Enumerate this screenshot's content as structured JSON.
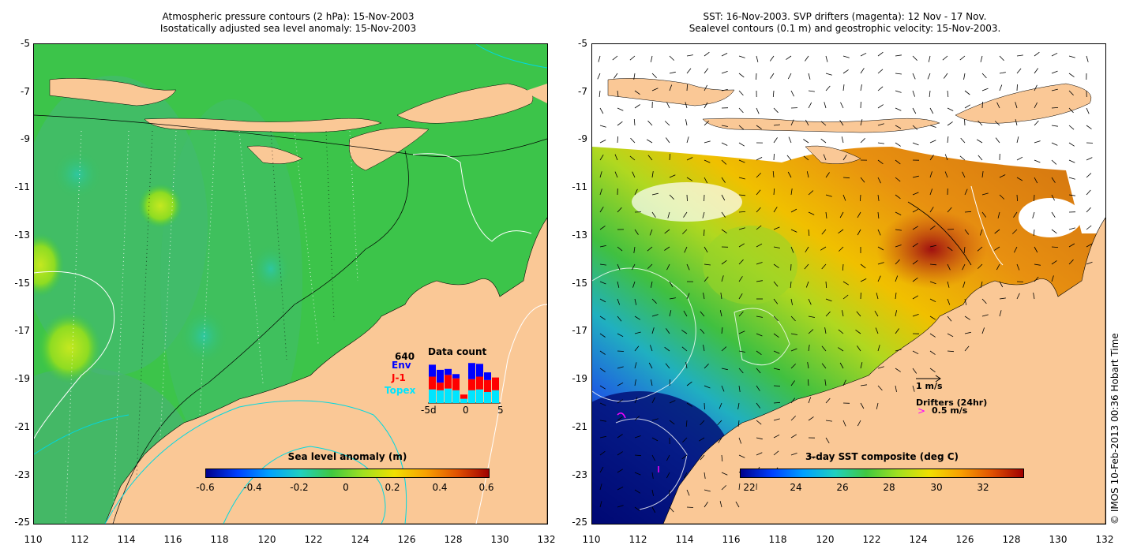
{
  "left": {
    "title_line1": "Atmospheric pressure contours (2 hPa): 15-Nov-2003",
    "title_line2": "Isostatically adjusted sea level anomaly: 15-Nov-2003",
    "y_ticks": [
      "-5",
      "-7",
      "-9",
      "-11",
      "-13",
      "-15",
      "-17",
      "-19",
      "-21",
      "-23",
      "-25"
    ],
    "x_ticks": [
      "110",
      "112",
      "114",
      "116",
      "118",
      "120",
      "122",
      "124",
      "126",
      "128",
      "130",
      "132"
    ],
    "colorbar": {
      "title": "Sea level anomaly (m)",
      "ticks": [
        "-0.6",
        "-0.4",
        "-0.2",
        "0",
        "0.2",
        "0.4",
        "0.6"
      ]
    },
    "data_count": {
      "title": "Data count",
      "max_label": "640",
      "env_label": "Env",
      "j1_label": "J-1",
      "topex_label": "Topex",
      "x_ticks": [
        "-5d",
        "0",
        "5"
      ],
      "env_color": "#0000ff",
      "j1_color": "#ff0000",
      "topex_color": "#00e5ff",
      "bars": [
        {
          "topex": 0.32,
          "j1": 0.3,
          "env": 0.28
        },
        {
          "topex": 0.3,
          "j1": 0.18,
          "env": 0.3
        },
        {
          "topex": 0.34,
          "j1": 0.32,
          "env": 0.14
        },
        {
          "topex": 0.3,
          "j1": 0.28,
          "env": 0.1
        },
        {
          "topex": 0.1,
          "j1": 0.1,
          "env": 0.0
        },
        {
          "topex": 0.3,
          "j1": 0.26,
          "env": 0.38
        },
        {
          "topex": 0.32,
          "j1": 0.3,
          "env": 0.3
        },
        {
          "topex": 0.26,
          "j1": 0.28,
          "env": 0.18
        },
        {
          "topex": 0.3,
          "j1": 0.3,
          "env": 0.0
        }
      ]
    }
  },
  "right": {
    "title_line1": "SST: 16-Nov-2003. SVP drifters (magenta): 12 Nov - 17 Nov.",
    "title_line2": "Sealevel contours (0.1 m) and geostrophic velocity: 15-Nov-2003.",
    "y_ticks": [
      "-5",
      "-7",
      "-9",
      "-11",
      "-13",
      "-15",
      "-17",
      "-19",
      "-21",
      "-23",
      "-25"
    ],
    "x_ticks": [
      "110",
      "112",
      "114",
      "116",
      "118",
      "120",
      "122",
      "124",
      "126",
      "128",
      "130",
      "132"
    ],
    "colorbar": {
      "title": "3-day SST composite (deg C)",
      "ticks": [
        "22",
        "24",
        "26",
        "28",
        "30",
        "32"
      ]
    },
    "velocity_legend": "1 m/s",
    "drifters_legend": "Drifters (24hr)",
    "drifter_speed": "0.5 m/s",
    "drifter_color": "#ff00ff"
  },
  "credit": "© IMOS 10-Feb-2013 00:36 Hobart Time",
  "colors": {
    "land": "#fac896",
    "sea_green": "#3fc840",
    "sst_orange": "#e69a1e"
  }
}
